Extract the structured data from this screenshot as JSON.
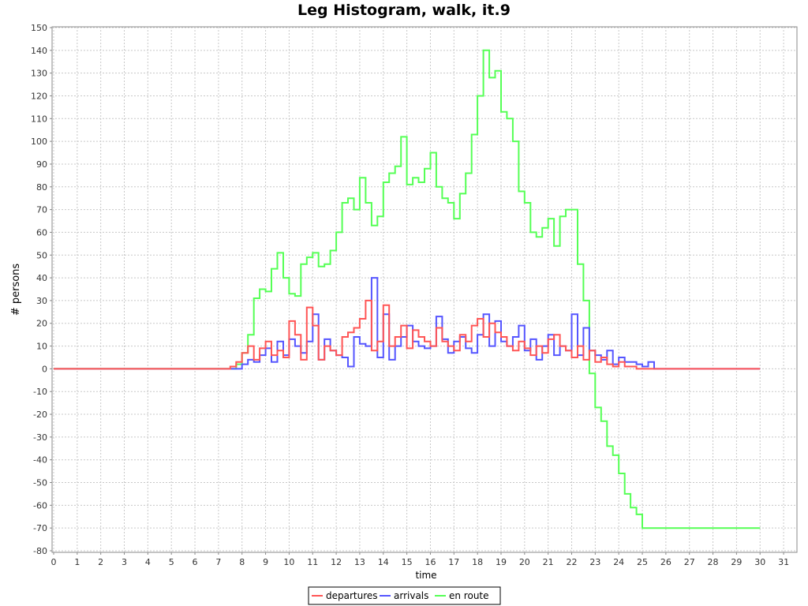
{
  "chart_data": {
    "type": "line",
    "title": "Leg Histogram, walk, it.9",
    "xlabel": "time",
    "ylabel": "# persons",
    "xlim": [
      0,
      31.5
    ],
    "ylim": [
      -80,
      150
    ],
    "x_ticks": [
      0,
      1,
      2,
      3,
      4,
      5,
      6,
      7,
      8,
      9,
      10,
      11,
      12,
      13,
      14,
      15,
      16,
      17,
      18,
      19,
      20,
      21,
      22,
      23,
      24,
      25,
      26,
      27,
      28,
      29,
      30,
      31
    ],
    "y_ticks": [
      -80,
      -70,
      -60,
      -50,
      -40,
      -30,
      -20,
      -10,
      0,
      10,
      20,
      30,
      40,
      50,
      60,
      70,
      80,
      90,
      100,
      110,
      120,
      130,
      140,
      150
    ],
    "grid": true,
    "legend_position": "bottom",
    "series": [
      {
        "name": "departures",
        "color": "#ff5555",
        "step": true,
        "x": [
          0,
          7.5,
          7.75,
          8,
          8.25,
          8.5,
          8.75,
          9,
          9.25,
          9.5,
          9.75,
          10,
          10.25,
          10.5,
          10.75,
          11,
          11.25,
          11.5,
          11.75,
          12,
          12.25,
          12.5,
          12.75,
          13,
          13.25,
          13.5,
          13.75,
          14,
          14.25,
          14.5,
          14.75,
          15,
          15.25,
          15.5,
          15.75,
          16,
          16.25,
          16.5,
          16.75,
          17,
          17.25,
          17.5,
          17.75,
          18,
          18.25,
          18.5,
          18.75,
          19,
          19.25,
          19.5,
          19.75,
          20,
          20.25,
          20.5,
          20.75,
          21,
          21.25,
          21.5,
          21.75,
          22,
          22.25,
          22.5,
          22.75,
          23,
          23.25,
          23.5,
          23.75,
          24,
          24.25,
          24.5,
          24.75,
          25,
          30
        ],
        "y": [
          0,
          1,
          3,
          7,
          10,
          4,
          9,
          12,
          6,
          8,
          5,
          21,
          15,
          4,
          27,
          19,
          4,
          10,
          8,
          6,
          14,
          16,
          18,
          22,
          30,
          8,
          12,
          28,
          10,
          14,
          19,
          9,
          17,
          14,
          12,
          10,
          18,
          12,
          10,
          8,
          15,
          12,
          19,
          22,
          14,
          20,
          16,
          14,
          10,
          8,
          12,
          9,
          6,
          10,
          7,
          13,
          15,
          10,
          8,
          5,
          10,
          4,
          8,
          3,
          5,
          2,
          1,
          3,
          1,
          1,
          0,
          0,
          0
        ]
      },
      {
        "name": "arrivals",
        "color": "#5555ff",
        "step": true,
        "x": [
          0,
          7.5,
          7.75,
          8,
          8.25,
          8.5,
          8.75,
          9,
          9.25,
          9.5,
          9.75,
          10,
          10.25,
          10.5,
          10.75,
          11,
          11.25,
          11.5,
          11.75,
          12,
          12.25,
          12.5,
          12.75,
          13,
          13.25,
          13.5,
          13.75,
          14,
          14.25,
          14.5,
          14.75,
          15,
          15.25,
          15.5,
          15.75,
          16,
          16.25,
          16.5,
          16.75,
          17,
          17.25,
          17.5,
          17.75,
          18,
          18.25,
          18.5,
          18.75,
          19,
          19.25,
          19.5,
          19.75,
          20,
          20.25,
          20.5,
          20.75,
          21,
          21.25,
          21.5,
          21.75,
          22,
          22.25,
          22.5,
          22.75,
          23,
          23.25,
          23.5,
          23.75,
          24,
          24.25,
          24.5,
          24.75,
          25,
          25.25,
          25.5,
          30
        ],
        "y": [
          0,
          0,
          0,
          2,
          4,
          3,
          6,
          9,
          3,
          12,
          6,
          13,
          10,
          7,
          12,
          24,
          4,
          13,
          8,
          6,
          5,
          1,
          14,
          11,
          10,
          40,
          5,
          24,
          4,
          10,
          14,
          19,
          12,
          10,
          9,
          10,
          23,
          13,
          7,
          12,
          14,
          9,
          7,
          15,
          24,
          10,
          21,
          12,
          10,
          14,
          19,
          8,
          13,
          4,
          10,
          15,
          6,
          10,
          8,
          24,
          6,
          18,
          8,
          6,
          4,
          8,
          2,
          5,
          3,
          3,
          2,
          1,
          3,
          0,
          0
        ]
      },
      {
        "name": "en route",
        "color": "#55ff55",
        "step": true,
        "x": [
          0,
          7.5,
          7.75,
          8,
          8.25,
          8.5,
          8.75,
          9,
          9.25,
          9.5,
          9.75,
          10,
          10.25,
          10.5,
          10.75,
          11,
          11.25,
          11.5,
          11.75,
          12,
          12.25,
          12.5,
          12.75,
          13,
          13.25,
          13.5,
          13.75,
          14,
          14.25,
          14.5,
          14.75,
          15,
          15.25,
          15.5,
          15.75,
          16,
          16.25,
          16.5,
          16.75,
          17,
          17.25,
          17.5,
          17.75,
          18,
          18.25,
          18.5,
          18.75,
          19,
          19.25,
          19.5,
          19.75,
          20,
          20.25,
          20.5,
          20.75,
          21,
          21.25,
          21.5,
          21.75,
          22,
          22.25,
          22.5,
          22.75,
          23,
          23.25,
          23.5,
          23.75,
          24,
          24.25,
          24.5,
          24.75,
          25,
          25.25,
          30
        ],
        "y": [
          0,
          0,
          2,
          7,
          15,
          31,
          35,
          34,
          44,
          51,
          40,
          33,
          32,
          46,
          49,
          51,
          45,
          46,
          52,
          60,
          73,
          75,
          70,
          84,
          73,
          63,
          67,
          82,
          86,
          89,
          102,
          81,
          84,
          82,
          88,
          95,
          80,
          75,
          73,
          66,
          77,
          86,
          103,
          120,
          140,
          128,
          131,
          113,
          110,
          100,
          78,
          73,
          60,
          58,
          62,
          66,
          54,
          67,
          70,
          70,
          46,
          30,
          -2,
          -17,
          -23,
          -34,
          -38,
          -46,
          -55,
          -61,
          -64,
          -70,
          -70,
          -70
        ]
      }
    ]
  }
}
